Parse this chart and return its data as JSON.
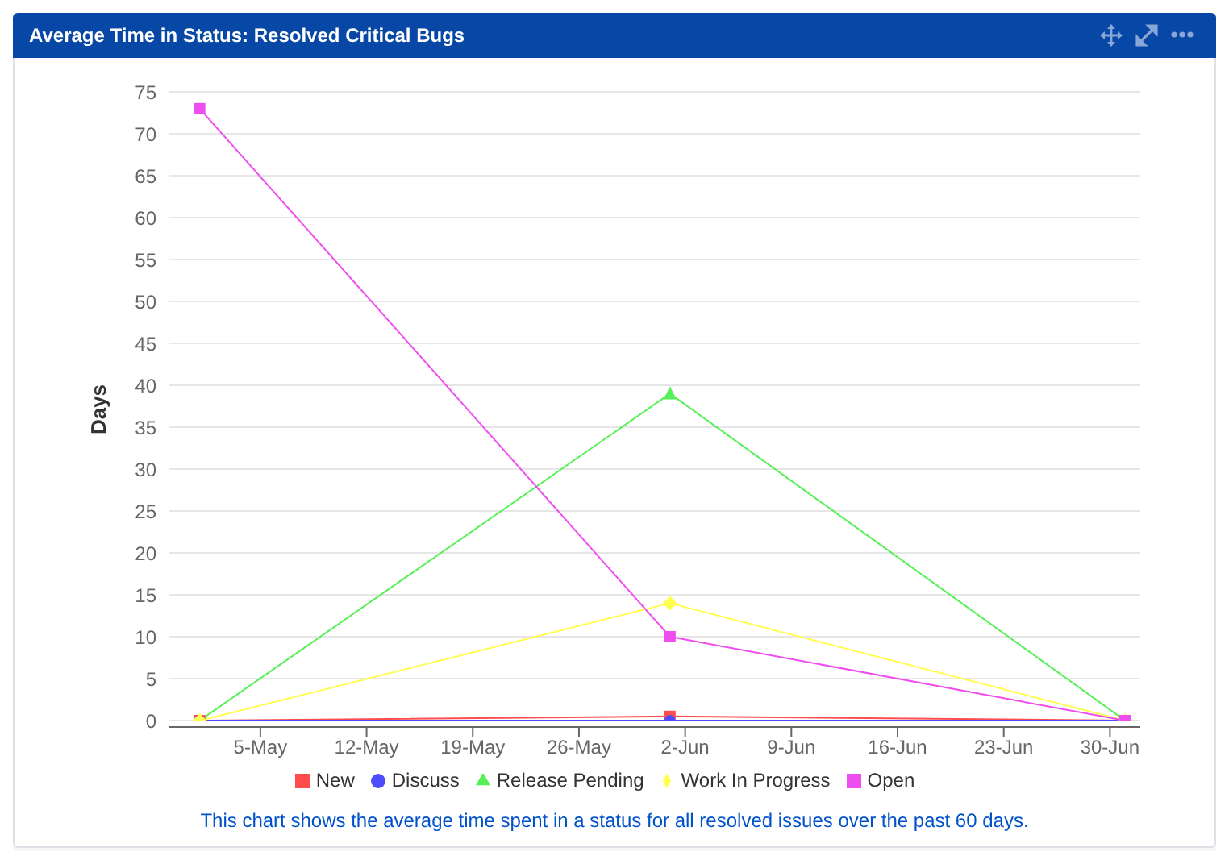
{
  "chart_data": {
    "type": "line",
    "title": "Average Time in Status: Resolved Critical Bugs",
    "ylabel": "Days",
    "x": [
      "--05-01",
      "--06-01",
      "--07-01"
    ],
    "series": [
      {
        "name": "New",
        "color": "#ff4d4d",
        "values": [
          0,
          0.5,
          0
        ],
        "marker": "square"
      },
      {
        "name": "Discuss",
        "color": "#4d4dff",
        "values": [
          0,
          0,
          0
        ],
        "marker": "circle"
      },
      {
        "name": "Release Pending",
        "color": "#55f055",
        "values": [
          0,
          39,
          0
        ],
        "marker": "triangle"
      },
      {
        "name": "Work In Progress",
        "color": "#ffff4d",
        "values": [
          0,
          14,
          0
        ],
        "marker": "diamond"
      },
      {
        "name": "Open",
        "color": "#f04df0",
        "values": [
          73,
          10,
          0
        ],
        "marker": "square"
      }
    ],
    "xlim": [
      "--04-29",
      "--07-02"
    ],
    "xticks": [
      {
        "value": "--05-05",
        "label": "5-May"
      },
      {
        "value": "--05-12",
        "label": "12-May"
      },
      {
        "value": "--05-19",
        "label": "19-May"
      },
      {
        "value": "--05-26",
        "label": "26-May"
      },
      {
        "value": "--06-02",
        "label": "2-Jun"
      },
      {
        "value": "--06-09",
        "label": "9-Jun"
      },
      {
        "value": "--06-16",
        "label": "16-Jun"
      },
      {
        "value": "--06-23",
        "label": "23-Jun"
      },
      {
        "value": "--06-30",
        "label": "30-Jun"
      }
    ],
    "ylim": [
      0,
      75
    ],
    "yticks": [
      0,
      5,
      10,
      15,
      20,
      25,
      30,
      35,
      40,
      45,
      50,
      55,
      60,
      65,
      70,
      75
    ],
    "grid": "y",
    "legend": "bottom",
    "line_style": "solid",
    "annotations": [
      "This chart shows the average time spent in a status for all resolved issues over the past 60 days."
    ]
  }
}
